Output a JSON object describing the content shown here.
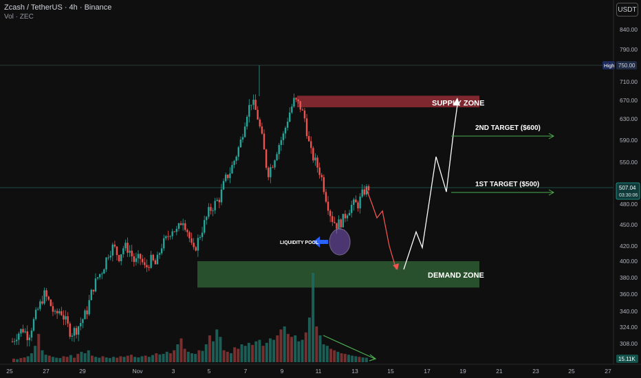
{
  "header": {
    "title": "Zcash / TetherUS · 4h · Binance",
    "volume_label": "Vol · ZEC"
  },
  "currency_button": "USDT",
  "price_axis": {
    "ticks": [
      "840.00",
      "790.00",
      "750.00",
      "710.00",
      "670.00",
      "630.00",
      "590.00",
      "550.00",
      "507.04",
      "480.00",
      "450.00",
      "420.00",
      "400.00",
      "380.00",
      "360.00",
      "340.00",
      "324.00",
      "308.00"
    ],
    "high_badge": "High",
    "high_value": "750.00",
    "last_price": "507.04",
    "countdown": "03:30:06",
    "volume_badge": "15.11K"
  },
  "time_axis": {
    "ticks": [
      "25",
      "27",
      "29",
      "Nov",
      "3",
      "5",
      "7",
      "9",
      "11",
      "13",
      "15",
      "17",
      "19",
      "21",
      "23",
      "25",
      "27"
    ]
  },
  "annotations": {
    "supply_zone": "SUPPLY ZONE",
    "demand_zone": "DEMAND ZONE",
    "target_2": "2ND TARGET ($600)",
    "target_1": "1ST TARGET ($500)",
    "liquidity_pool": "LIQUIDITY POOL"
  },
  "colors": {
    "up": "#26a69a",
    "down": "#ef5350",
    "supply": "#8b2a33",
    "demand": "#2e5c33",
    "target_line": "#4caf50",
    "background": "#0f0f0f"
  },
  "chart_data": {
    "type": "candlestick",
    "symbol": "ZEC/USDT",
    "interval": "4h",
    "x_ticks": [
      "25",
      "27",
      "29",
      "Nov",
      "3",
      "5",
      "7",
      "9",
      "11",
      "13",
      "15",
      "17",
      "19",
      "21",
      "23",
      "25",
      "27"
    ],
    "y_ticks": [
      840,
      790,
      750,
      710,
      670,
      630,
      590,
      550,
      480,
      450,
      420,
      400,
      380,
      360,
      340,
      324,
      308
    ],
    "last_price": 507.04,
    "high": 750,
    "supply_zone": [
      655,
      680
    ],
    "demand_zone": [
      368,
      400
    ],
    "targets": [
      {
        "label": "2ND TARGET ($600)",
        "price": 600
      },
      {
        "label": "1ST TARGET ($500)",
        "price": 500
      }
    ],
    "close_path": [
      [
        0,
        310
      ],
      [
        5,
        318
      ],
      [
        10,
        322
      ],
      [
        15,
        315
      ],
      [
        20,
        330
      ],
      [
        25,
        345
      ],
      [
        30,
        360
      ],
      [
        35,
        350
      ],
      [
        40,
        335
      ],
      [
        45,
        342
      ],
      [
        50,
        330
      ],
      [
        55,
        318
      ],
      [
        60,
        322
      ],
      [
        65,
        330
      ],
      [
        70,
        340
      ],
      [
        75,
        365
      ],
      [
        80,
        380
      ],
      [
        85,
        390
      ],
      [
        90,
        410
      ],
      [
        95,
        420
      ],
      [
        100,
        405
      ],
      [
        105,
        420
      ],
      [
        110,
        415
      ],
      [
        115,
        398
      ],
      [
        120,
        405
      ],
      [
        125,
        390
      ],
      [
        130,
        402
      ],
      [
        135,
        395
      ],
      [
        140,
        420
      ],
      [
        145,
        430
      ],
      [
        150,
        445
      ],
      [
        155,
        440
      ],
      [
        160,
        460
      ],
      [
        165,
        440
      ],
      [
        170,
        410
      ],
      [
        175,
        430
      ],
      [
        180,
        450
      ],
      [
        185,
        470
      ],
      [
        190,
        480
      ],
      [
        195,
        490
      ],
      [
        200,
        520
      ],
      [
        205,
        535
      ],
      [
        210,
        560
      ],
      [
        215,
        590
      ],
      [
        220,
        640
      ],
      [
        225,
        670
      ],
      [
        230,
        640
      ],
      [
        235,
        590
      ],
      [
        240,
        530
      ],
      [
        245,
        550
      ],
      [
        250,
        580
      ],
      [
        255,
        600
      ],
      [
        260,
        640
      ],
      [
        265,
        670
      ],
      [
        270,
        660
      ],
      [
        275,
        630
      ],
      [
        280,
        570
      ],
      [
        285,
        550
      ],
      [
        290,
        530
      ],
      [
        295,
        490
      ],
      [
        300,
        460
      ],
      [
        305,
        450
      ],
      [
        310,
        455
      ],
      [
        315,
        470
      ],
      [
        320,
        480
      ],
      [
        325,
        480
      ],
      [
        330,
        500
      ],
      [
        335,
        507
      ]
    ],
    "volume": [
      12,
      10,
      14,
      16,
      20,
      30,
      55,
      95,
      40,
      25,
      22,
      18,
      15,
      14,
      20,
      18,
      24,
      15,
      28,
      35,
      30,
      40,
      22,
      18,
      15,
      20,
      16,
      14,
      18,
      15,
      20,
      18,
      22,
      25,
      18,
      16,
      20,
      22,
      18,
      24,
      30,
      26,
      28,
      35,
      30,
      40,
      60,
      80,
      45,
      35,
      30,
      28,
      40,
      38,
      60,
      90,
      70,
      110,
      85,
      40,
      35,
      30,
      50,
      45,
      60,
      55,
      65,
      58,
      70,
      75,
      55,
      65,
      80,
      75,
      90,
      110,
      120,
      95,
      85,
      90,
      70,
      75,
      100,
      150,
      300,
      120,
      90,
      60,
      55,
      45,
      40,
      35,
      30,
      28,
      25,
      22,
      20,
      18,
      16,
      15
    ],
    "projection": {
      "bearish_path": [
        [
          0,
          507
        ],
        [
          1,
          480
        ],
        [
          2,
          460
        ],
        [
          3,
          470
        ],
        [
          4,
          420
        ],
        [
          5,
          390
        ]
      ],
      "bullish_path": [
        [
          0,
          390
        ],
        [
          1,
          440
        ],
        [
          2,
          418
        ],
        [
          3,
          560
        ],
        [
          4,
          500
        ],
        [
          5,
          600
        ],
        [
          6,
          660
        ]
      ]
    }
  }
}
